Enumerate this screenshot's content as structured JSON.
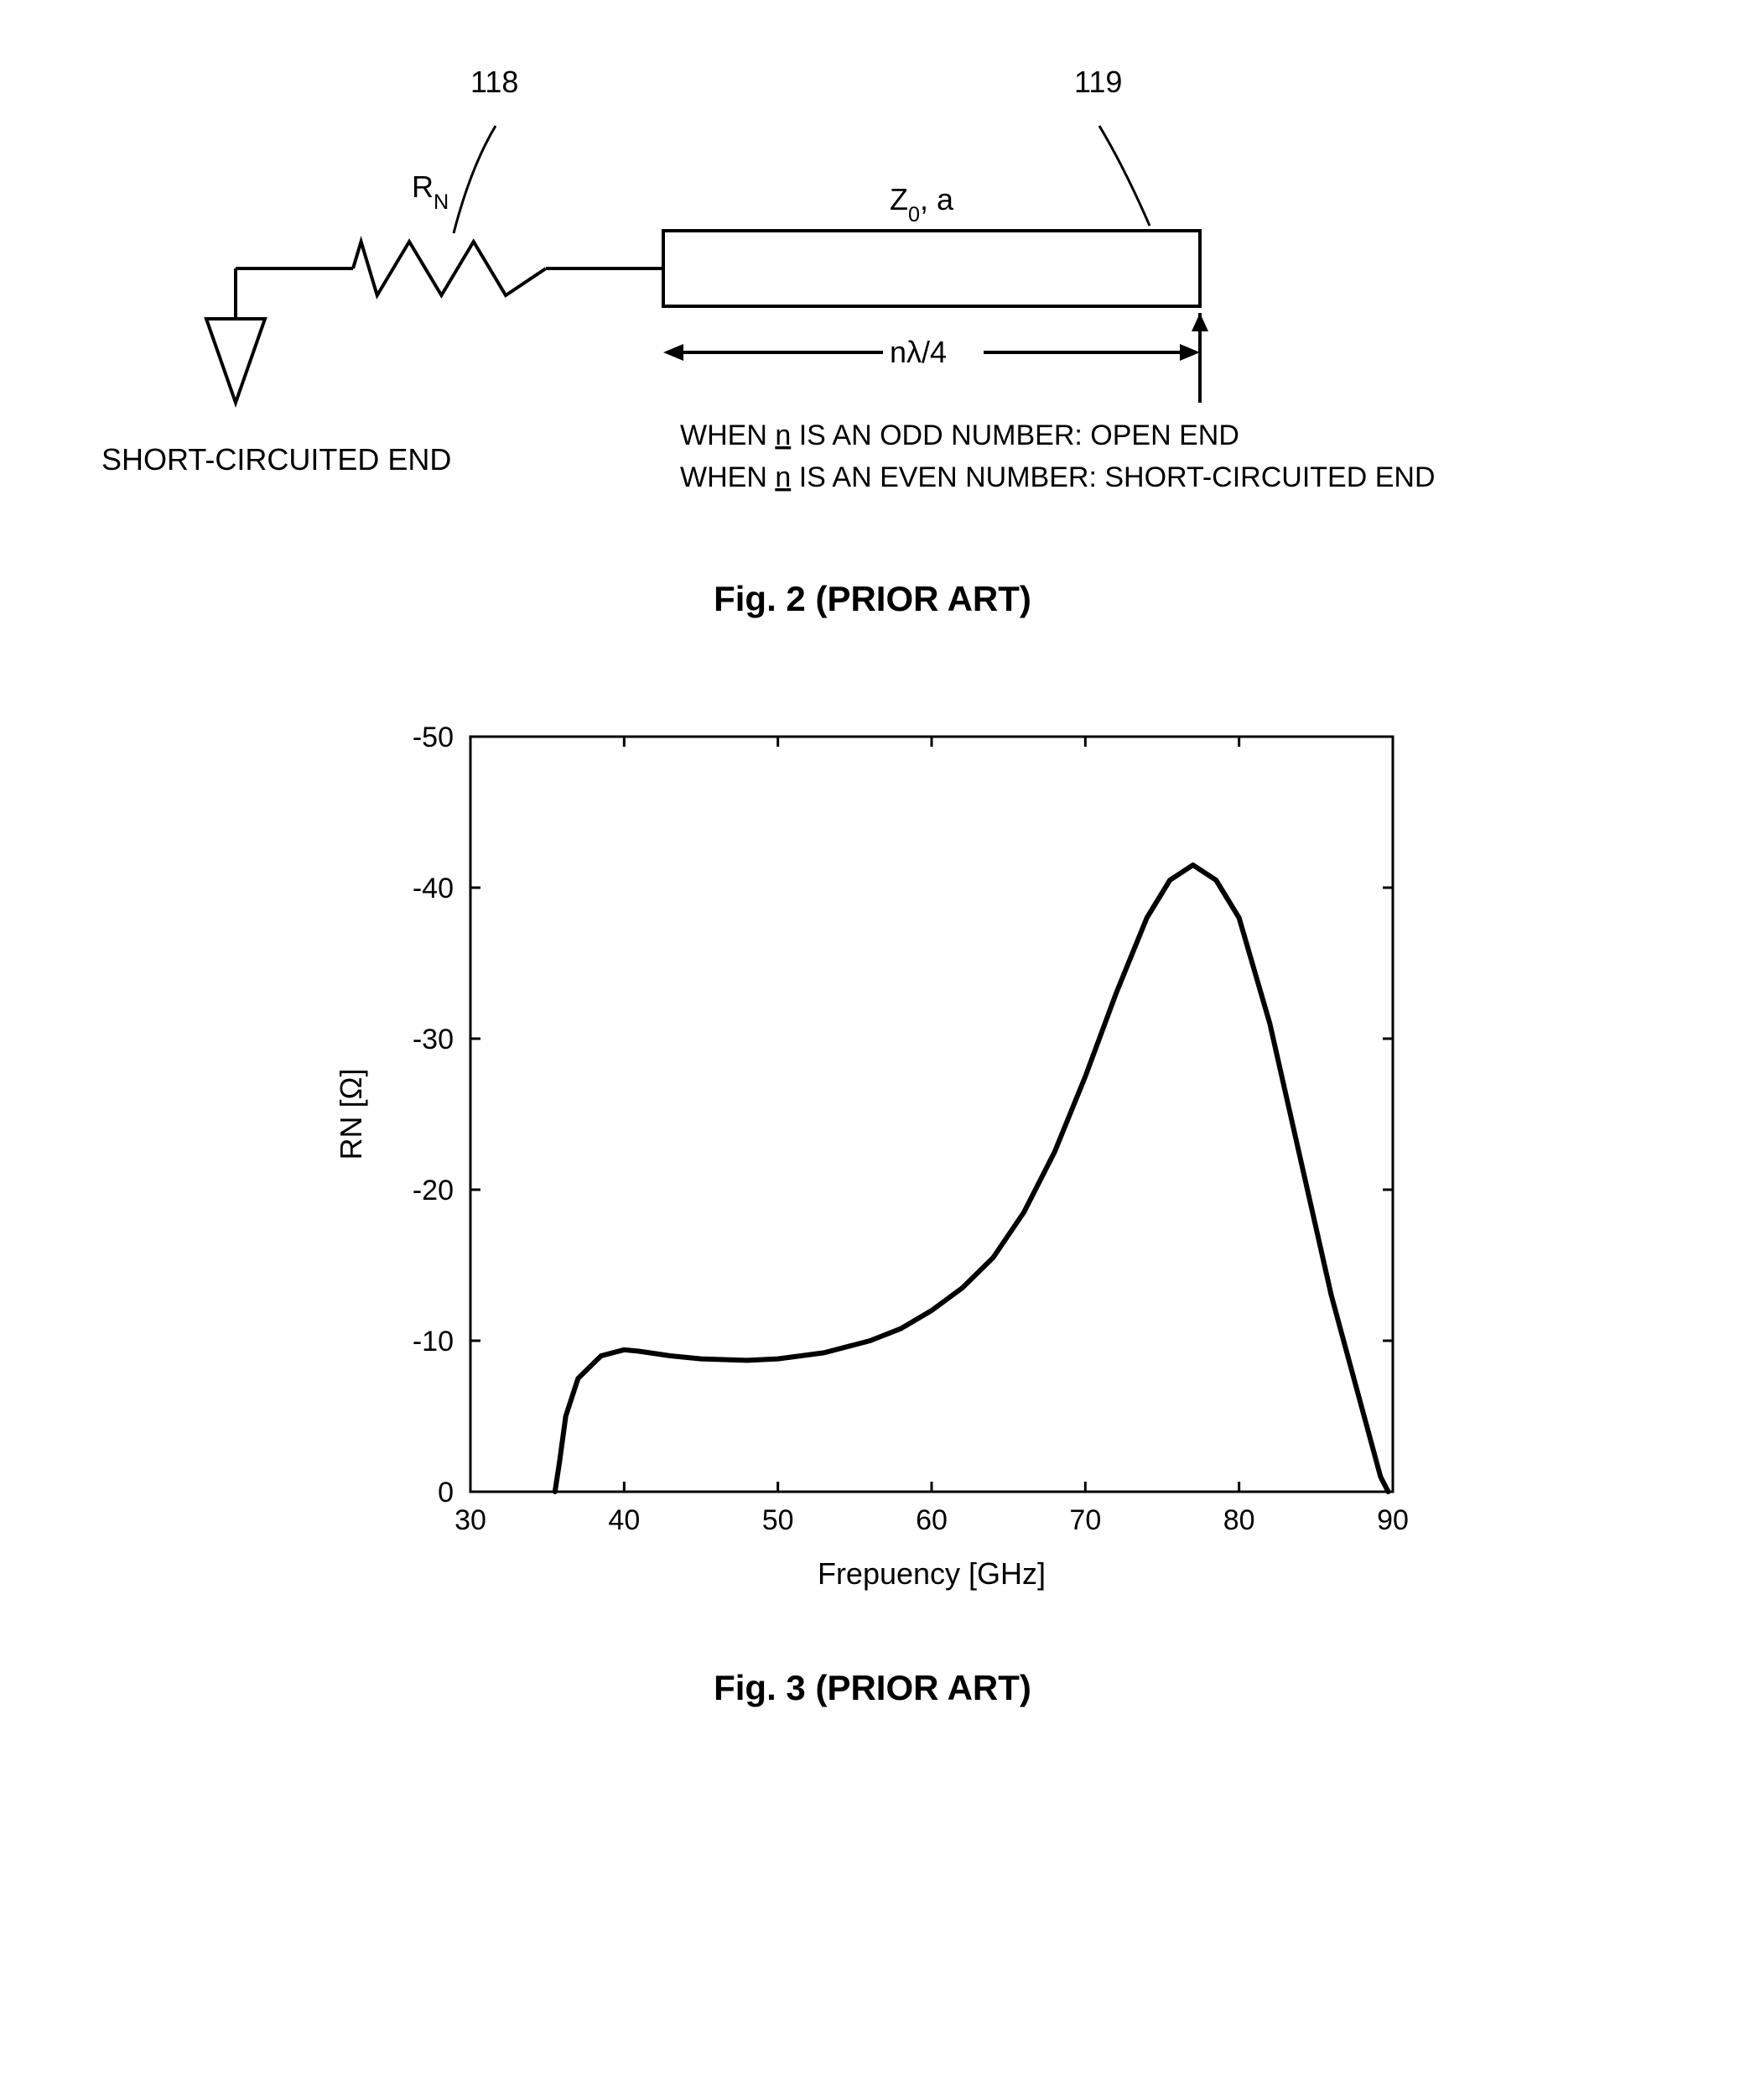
{
  "fig2": {
    "ref_118": "118",
    "ref_119": "119",
    "resistor_label": "R",
    "resistor_sub": "N",
    "tline_label_z": "Z",
    "tline_label_zsub": "0",
    "tline_label_rest": ", a",
    "length_label": "nλ/4",
    "left_end_label": "SHORT-CIRCUITED END",
    "note_line1_a": "WHEN ",
    "note_line1_b": "n",
    "note_line1_c": " IS AN ODD NUMBER: OPEN END",
    "note_line2_a": "WHEN ",
    "note_line2_b": "n",
    "note_line2_c": " IS AN EVEN NUMBER: SHORT-CIRCUITED END",
    "caption": "Fig. 2 (PRIOR ART)",
    "stroke_color": "#000000",
    "stroke_width": 4
  },
  "fig3": {
    "type": "line",
    "xlabel": "Frepuency    [GHz]",
    "ylabel": "RN   [Ω]",
    "xlim": [
      30,
      90
    ],
    "ylim": [
      0,
      -50
    ],
    "xticks": [
      30,
      40,
      50,
      60,
      70,
      80,
      90
    ],
    "yticks": [
      0,
      -10,
      -20,
      -30,
      -40,
      -50
    ],
    "xtick_labels": [
      "30",
      "40",
      "50",
      "60",
      "70",
      "80",
      "90"
    ],
    "ytick_labels": [
      "0",
      "-10",
      "-20",
      "-30",
      "-40",
      "-50"
    ],
    "tick_fontsize": 34,
    "label_fontsize": 36,
    "curve_color": "#000000",
    "curve_width": 6,
    "frame_color": "#000000",
    "frame_width": 3,
    "tick_length": 12,
    "background_color": "#ffffff",
    "data": [
      {
        "x": 35.5,
        "y": 0
      },
      {
        "x": 35.8,
        "y": -2
      },
      {
        "x": 36.2,
        "y": -5
      },
      {
        "x": 37.0,
        "y": -7.5
      },
      {
        "x": 38.5,
        "y": -9.0
      },
      {
        "x": 40.0,
        "y": -9.4
      },
      {
        "x": 41.0,
        "y": -9.3
      },
      {
        "x": 43.0,
        "y": -9.0
      },
      {
        "x": 45.0,
        "y": -8.8
      },
      {
        "x": 48.0,
        "y": -8.7
      },
      {
        "x": 50.0,
        "y": -8.8
      },
      {
        "x": 53.0,
        "y": -9.2
      },
      {
        "x": 56.0,
        "y": -10.0
      },
      {
        "x": 58.0,
        "y": -10.8
      },
      {
        "x": 60.0,
        "y": -12.0
      },
      {
        "x": 62.0,
        "y": -13.5
      },
      {
        "x": 64.0,
        "y": -15.5
      },
      {
        "x": 66.0,
        "y": -18.5
      },
      {
        "x": 68.0,
        "y": -22.5
      },
      {
        "x": 70.0,
        "y": -27.5
      },
      {
        "x": 72.0,
        "y": -33.0
      },
      {
        "x": 74.0,
        "y": -38.0
      },
      {
        "x": 75.5,
        "y": -40.5
      },
      {
        "x": 77.0,
        "y": -41.5
      },
      {
        "x": 78.5,
        "y": -40.5
      },
      {
        "x": 80.0,
        "y": -38.0
      },
      {
        "x": 82.0,
        "y": -31.0
      },
      {
        "x": 84.0,
        "y": -22.0
      },
      {
        "x": 86.0,
        "y": -13.0
      },
      {
        "x": 88.0,
        "y": -5.5
      },
      {
        "x": 89.2,
        "y": -1.0
      },
      {
        "x": 89.7,
        "y": 0
      }
    ],
    "caption": "Fig. 3 (PRIOR ART)"
  }
}
